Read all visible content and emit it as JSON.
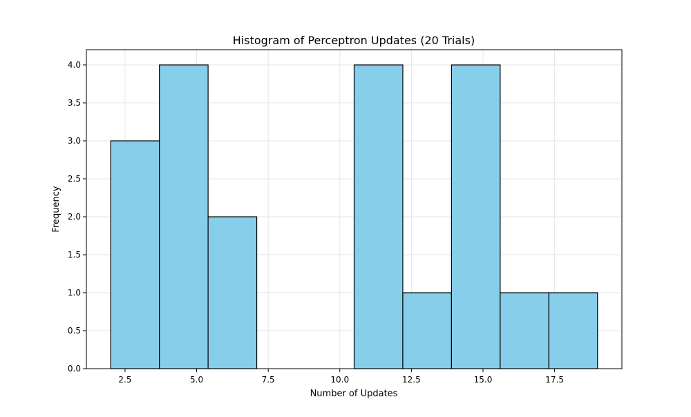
{
  "chart_data": {
    "type": "bar",
    "title": "Histogram of Perceptron Updates (20 Trials)",
    "xlabel": "Number of Updates",
    "ylabel": "Frequency",
    "bin_edges": [
      2.0,
      3.7,
      5.4,
      7.1,
      8.8,
      10.5,
      12.2,
      13.9,
      15.6,
      17.3,
      19.0
    ],
    "values": [
      3,
      4,
      2,
      0,
      0,
      4,
      1,
      4,
      1,
      1
    ],
    "xlim": [
      1.15,
      19.85
    ],
    "ylim": [
      0,
      4.2
    ],
    "xticks": [
      2.5,
      5.0,
      7.5,
      10.0,
      12.5,
      15.0,
      17.5
    ],
    "xtick_labels": [
      "2.5",
      "5.0",
      "7.5",
      "10.0",
      "12.5",
      "15.0",
      "17.5"
    ],
    "yticks": [
      0.0,
      0.5,
      1.0,
      1.5,
      2.0,
      2.5,
      3.0,
      3.5,
      4.0
    ],
    "ytick_labels": [
      "0.0",
      "0.5",
      "1.0",
      "1.5",
      "2.0",
      "2.5",
      "3.0",
      "3.5",
      "4.0"
    ],
    "grid": true,
    "legend": false,
    "bar_color": "#87ceeb",
    "edge_color": "#000000",
    "grid_color": "#e6e6e6"
  }
}
